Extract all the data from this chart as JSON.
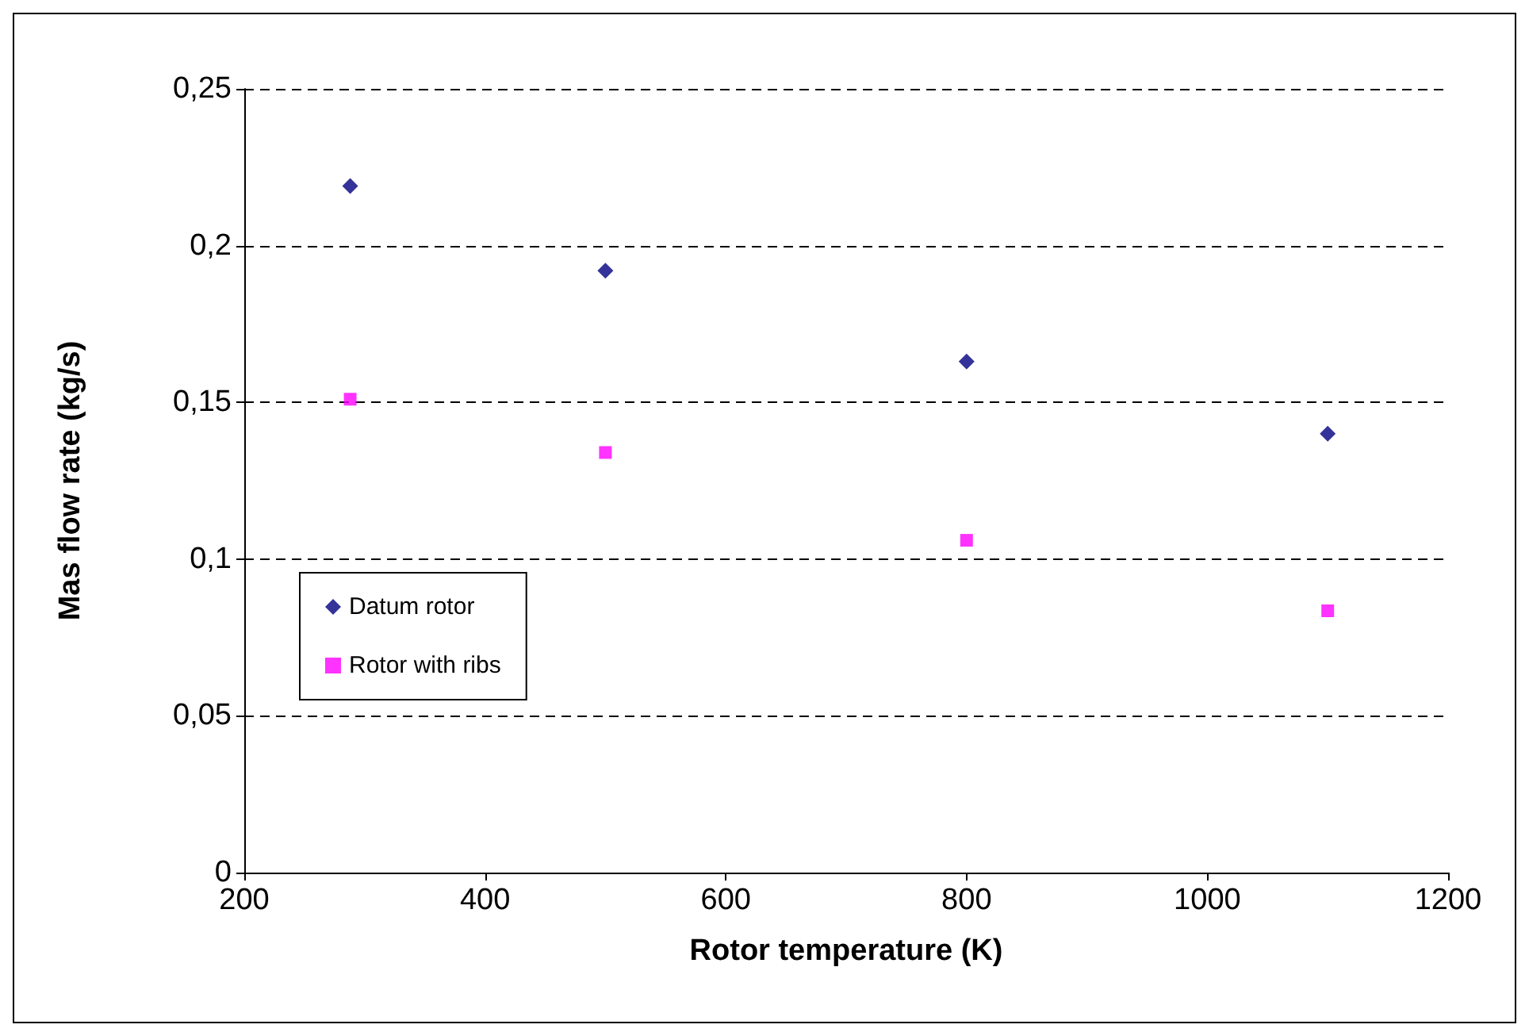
{
  "chart_data": {
    "type": "scatter",
    "xlabel": "Rotor temperature (K)",
    "ylabel": "Mas flow rate (kg/s)",
    "x": [
      288,
      500,
      800,
      1100
    ],
    "series": [
      {
        "name": "Datum rotor",
        "color": "#000080",
        "marker": "diamond",
        "values": [
          0.219,
          0.192,
          0.163,
          0.14
        ]
      },
      {
        "name": "Rotor with ribs",
        "color": "#ff00ff",
        "marker": "square",
        "values": [
          0.151,
          0.134,
          0.106,
          0.0835
        ]
      }
    ],
    "xlim": [
      200,
      1200
    ],
    "xticks": [
      200,
      400,
      600,
      800,
      1000,
      1200
    ],
    "ylim": [
      0,
      0.25
    ],
    "yticks": [
      0,
      {
        "value": 0.05,
        "label": "0,05"
      },
      {
        "value": 0.1,
        "label": "0,1"
      },
      {
        "value": 0.15,
        "label": "0,15"
      },
      {
        "value": 0.2,
        "label": "0,2"
      },
      {
        "value": 0.25,
        "label": "0,25"
      }
    ],
    "grid": "y",
    "legend": "left"
  }
}
